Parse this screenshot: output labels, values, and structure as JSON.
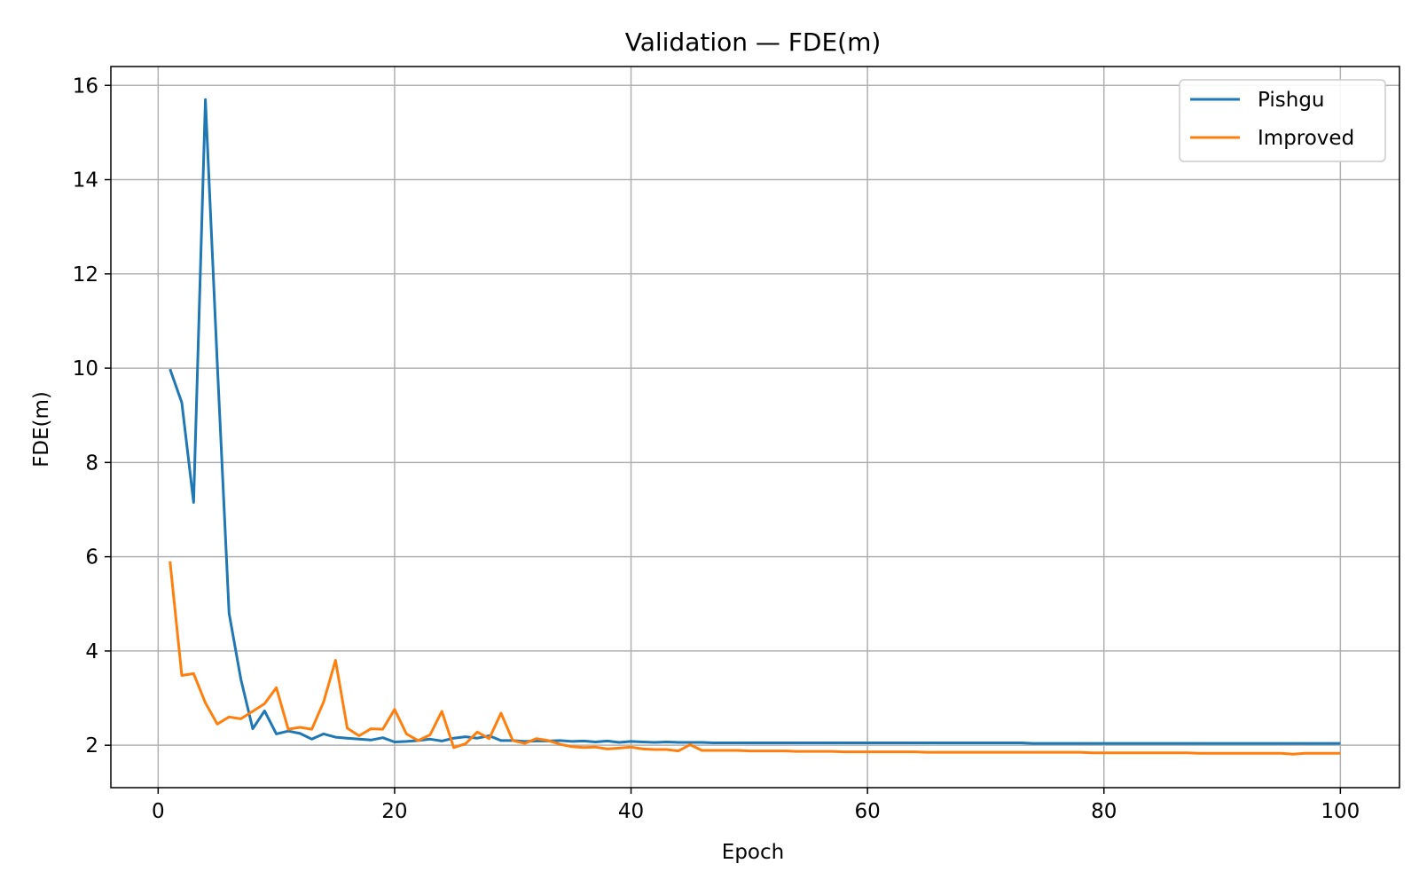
{
  "chart_data": {
    "type": "line",
    "title": "Validation — FDE(m)",
    "xlabel": "Epoch",
    "ylabel": "FDE(m)",
    "xlim": [
      -4,
      105
    ],
    "ylim": [
      1.1,
      16.4
    ],
    "xticks": [
      0,
      20,
      40,
      60,
      80,
      100
    ],
    "yticks": [
      2,
      4,
      6,
      8,
      10,
      12,
      14,
      16
    ],
    "grid": true,
    "legend": "top-right",
    "series": [
      {
        "name": "Pishgu",
        "color": "#1f77b4",
        "x": [
          1,
          2,
          3,
          4,
          5,
          6,
          7,
          8,
          9,
          10,
          11,
          12,
          13,
          14,
          15,
          16,
          17,
          18,
          19,
          20,
          21,
          22,
          23,
          24,
          25,
          26,
          27,
          28,
          29,
          30,
          31,
          32,
          33,
          34,
          35,
          36,
          37,
          38,
          39,
          40,
          41,
          42,
          43,
          44,
          45,
          46,
          47,
          48,
          49,
          50,
          51,
          52,
          53,
          54,
          55,
          56,
          57,
          58,
          59,
          60,
          61,
          62,
          63,
          64,
          65,
          66,
          67,
          68,
          69,
          70,
          71,
          72,
          73,
          74,
          75,
          76,
          77,
          78,
          79,
          80,
          81,
          82,
          83,
          84,
          85,
          86,
          87,
          88,
          89,
          90,
          91,
          92,
          93,
          94,
          95,
          96,
          97,
          98,
          99,
          100
        ],
        "values": [
          9.98,
          9.27,
          7.15,
          15.7,
          10.1,
          4.8,
          3.4,
          2.35,
          2.73,
          2.24,
          2.3,
          2.25,
          2.13,
          2.24,
          2.17,
          2.15,
          2.13,
          2.11,
          2.16,
          2.07,
          2.08,
          2.1,
          2.13,
          2.09,
          2.15,
          2.18,
          2.15,
          2.2,
          2.1,
          2.1,
          2.08,
          2.09,
          2.09,
          2.1,
          2.08,
          2.09,
          2.07,
          2.09,
          2.06,
          2.08,
          2.07,
          2.06,
          2.07,
          2.06,
          2.06,
          2.06,
          2.05,
          2.05,
          2.05,
          2.05,
          2.05,
          2.05,
          2.05,
          2.05,
          2.05,
          2.05,
          2.05,
          2.05,
          2.05,
          2.05,
          2.05,
          2.05,
          2.05,
          2.05,
          2.05,
          2.05,
          2.05,
          2.05,
          2.05,
          2.05,
          2.05,
          2.05,
          2.05,
          2.04,
          2.04,
          2.04,
          2.04,
          2.04,
          2.04,
          2.04,
          2.04,
          2.04,
          2.04,
          2.04,
          2.04,
          2.04,
          2.04,
          2.04,
          2.04,
          2.04,
          2.04,
          2.04,
          2.04,
          2.04,
          2.04,
          2.04,
          2.04,
          2.04,
          2.04,
          2.04
        ]
      },
      {
        "name": "Improved",
        "color": "#ff7f0e",
        "x": [
          1,
          2,
          3,
          4,
          5,
          6,
          7,
          8,
          9,
          10,
          11,
          12,
          13,
          14,
          15,
          16,
          17,
          18,
          19,
          20,
          21,
          22,
          23,
          24,
          25,
          26,
          27,
          28,
          29,
          30,
          31,
          32,
          33,
          34,
          35,
          36,
          37,
          38,
          39,
          40,
          41,
          42,
          43,
          44,
          45,
          46,
          47,
          48,
          49,
          50,
          51,
          52,
          53,
          54,
          55,
          56,
          57,
          58,
          59,
          60,
          61,
          62,
          63,
          64,
          65,
          66,
          67,
          68,
          69,
          70,
          71,
          72,
          73,
          74,
          75,
          76,
          77,
          78,
          79,
          80,
          81,
          82,
          83,
          84,
          85,
          86,
          87,
          88,
          89,
          90,
          91,
          92,
          93,
          94,
          95,
          96,
          97,
          98,
          99,
          100
        ],
        "values": [
          5.9,
          3.48,
          3.52,
          2.9,
          2.45,
          2.6,
          2.56,
          2.72,
          2.88,
          3.22,
          2.34,
          2.38,
          2.34,
          2.92,
          3.8,
          2.36,
          2.2,
          2.35,
          2.34,
          2.76,
          2.24,
          2.1,
          2.22,
          2.72,
          1.95,
          2.03,
          2.28,
          2.14,
          2.68,
          2.1,
          2.04,
          2.14,
          2.1,
          2.02,
          1.97,
          1.95,
          1.96,
          1.92,
          1.94,
          1.96,
          1.92,
          1.91,
          1.91,
          1.88,
          2.01,
          1.89,
          1.89,
          1.89,
          1.89,
          1.88,
          1.88,
          1.88,
          1.88,
          1.87,
          1.87,
          1.87,
          1.87,
          1.86,
          1.86,
          1.86,
          1.86,
          1.86,
          1.86,
          1.86,
          1.85,
          1.85,
          1.85,
          1.85,
          1.85,
          1.85,
          1.85,
          1.85,
          1.85,
          1.85,
          1.85,
          1.85,
          1.85,
          1.85,
          1.84,
          1.84,
          1.84,
          1.84,
          1.84,
          1.84,
          1.84,
          1.84,
          1.84,
          1.83,
          1.83,
          1.83,
          1.83,
          1.83,
          1.83,
          1.83,
          1.83,
          1.81,
          1.83,
          1.83,
          1.83,
          1.83
        ]
      }
    ]
  }
}
